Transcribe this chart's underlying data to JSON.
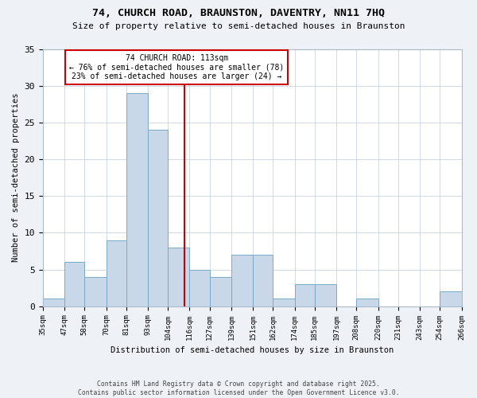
{
  "title1": "74, CHURCH ROAD, BRAUNSTON, DAVENTRY, NN11 7HQ",
  "title2": "Size of property relative to semi-detached houses in Braunston",
  "xlabel": "Distribution of semi-detached houses by size in Braunston",
  "ylabel": "Number of semi-detached properties",
  "bins": [
    35,
    47,
    58,
    70,
    81,
    93,
    104,
    116,
    127,
    139,
    151,
    162,
    174,
    185,
    197,
    208,
    220,
    231,
    243,
    254,
    266
  ],
  "counts": [
    1,
    6,
    4,
    9,
    29,
    24,
    8,
    5,
    4,
    7,
    7,
    1,
    3,
    3,
    0,
    1,
    0,
    0,
    0,
    2
  ],
  "bar_color": "#c8d8e8",
  "bar_edge_color": "#7aaac8",
  "reference_line_x": 113,
  "annotation_title": "74 CHURCH ROAD: 113sqm",
  "annotation_line1": "← 76% of semi-detached houses are smaller (78)",
  "annotation_line2": "23% of semi-detached houses are larger (24) →",
  "annotation_box_color": "#ffffff",
  "annotation_box_edge": "#cc0000",
  "reference_line_color": "#cc0000",
  "ylim": [
    0,
    35
  ],
  "yticks": [
    0,
    5,
    10,
    15,
    20,
    25,
    30,
    35
  ],
  "footer1": "Contains HM Land Registry data © Crown copyright and database right 2025.",
  "footer2": "Contains public sector information licensed under the Open Government Licence v3.0.",
  "bg_color": "#eef2f7",
  "plot_bg_color": "#ffffff",
  "grid_color": "#c8d4e0"
}
